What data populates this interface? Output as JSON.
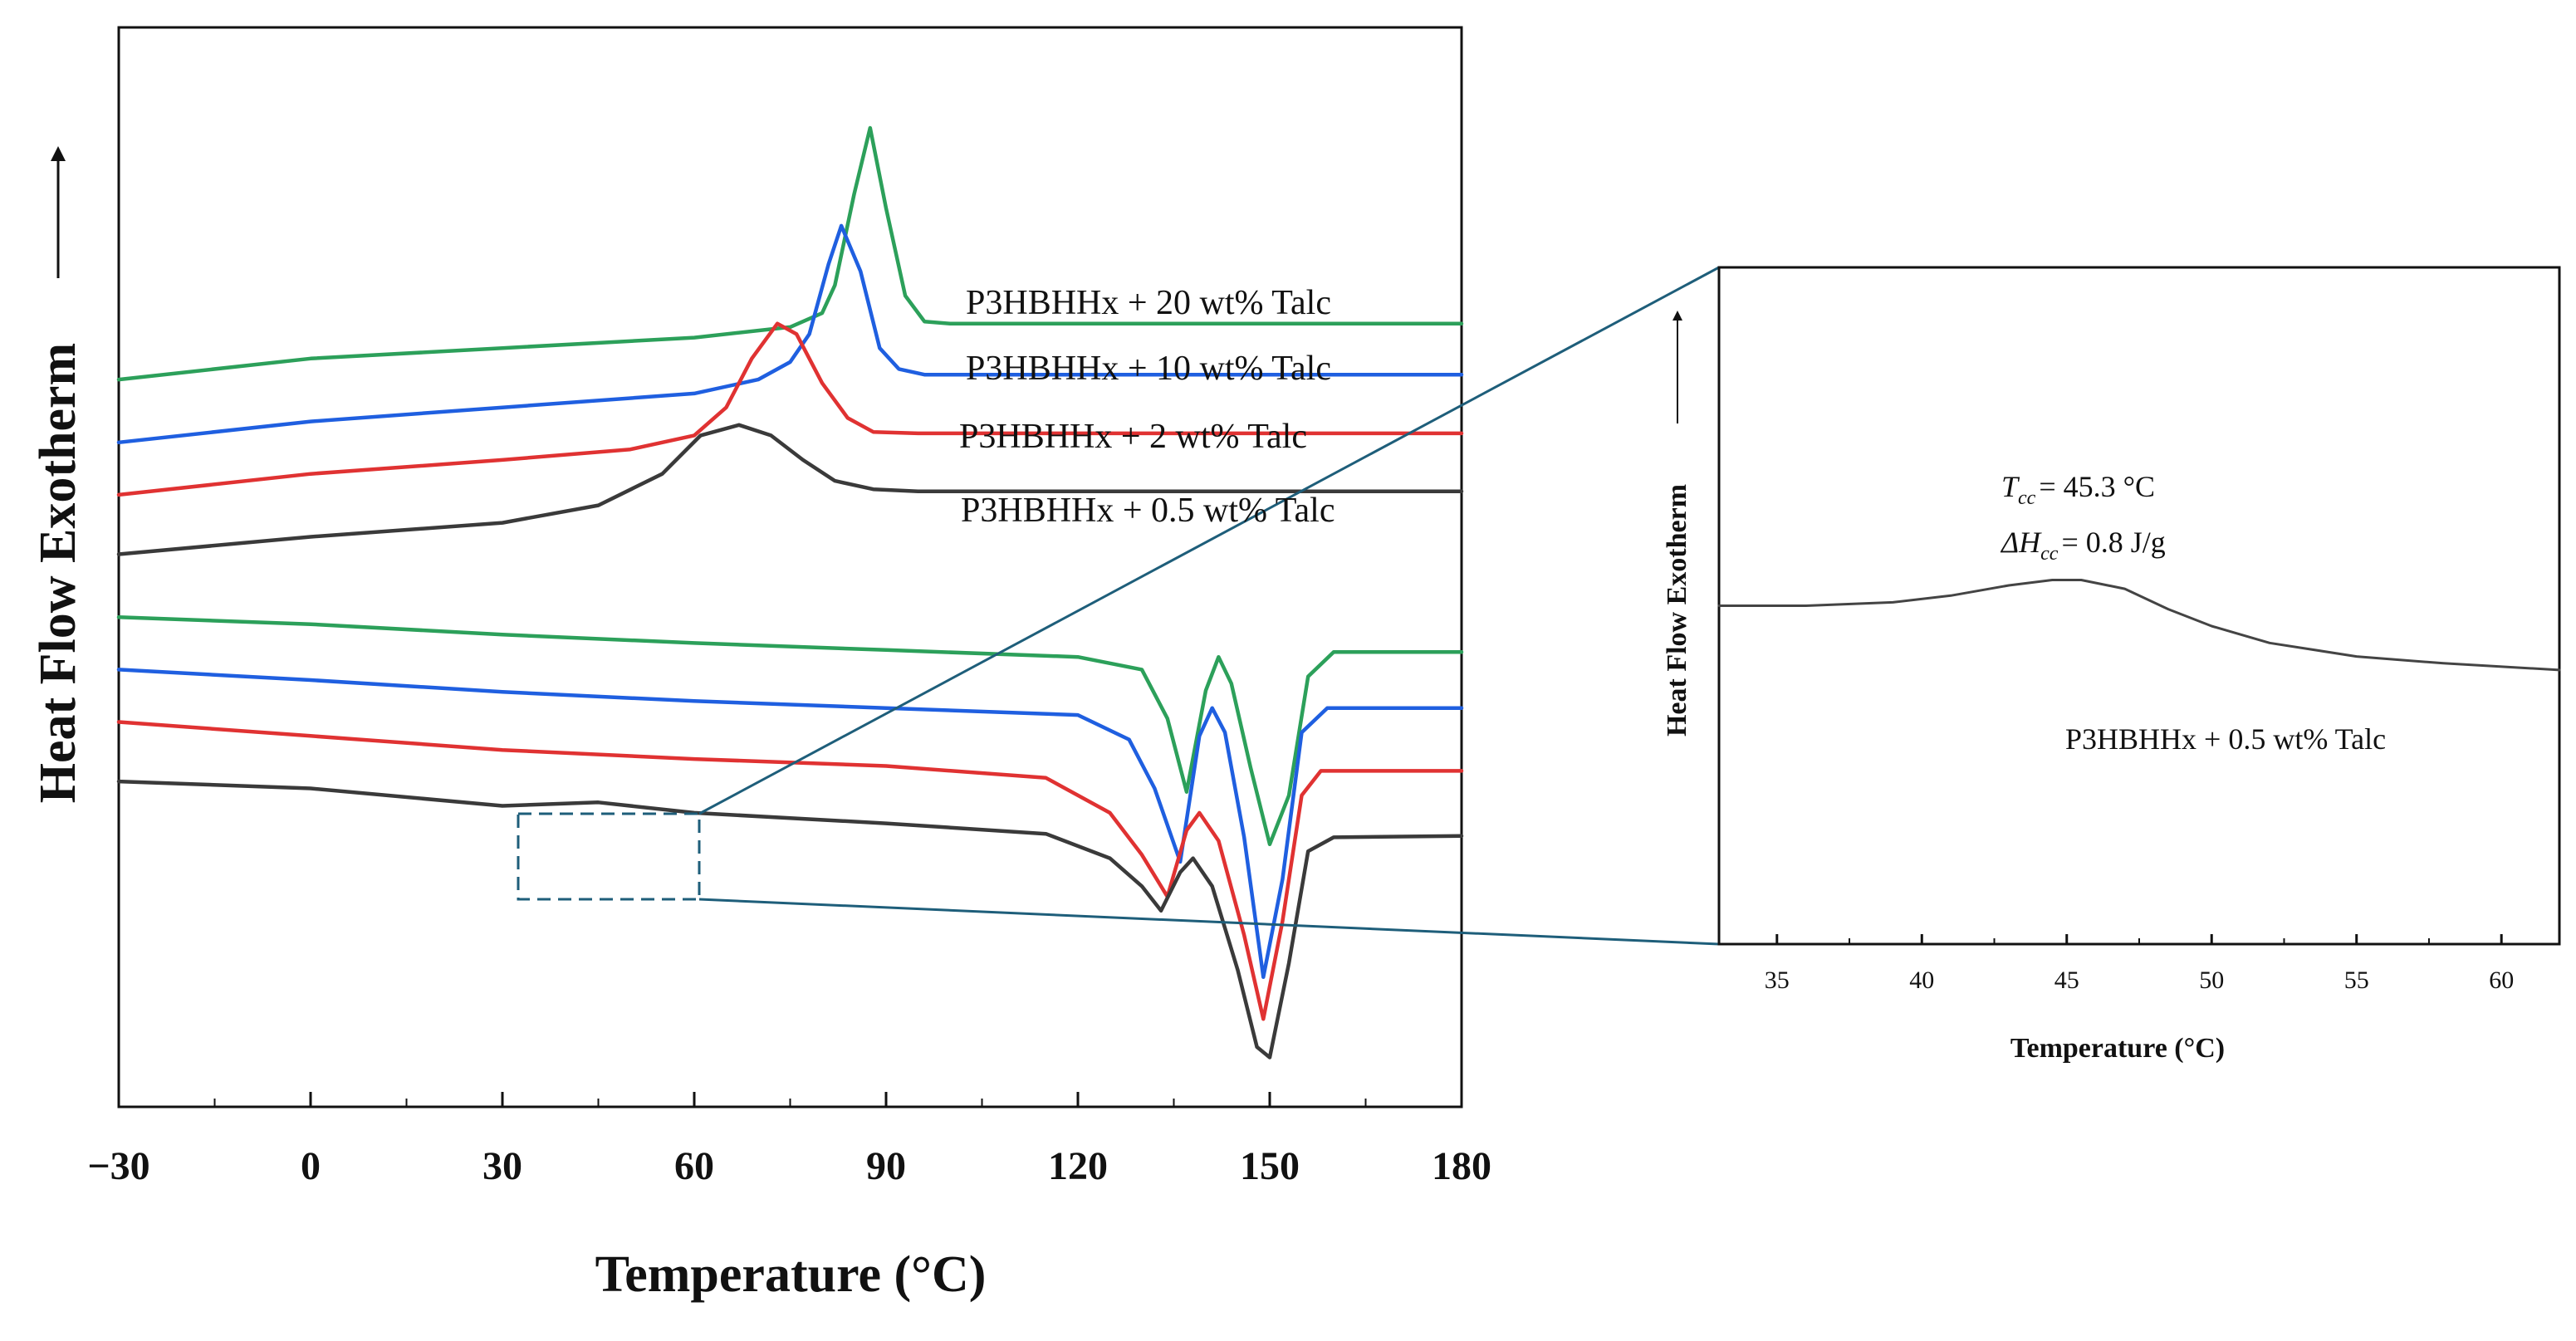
{
  "chart_data": [
    {
      "type": "line",
      "title": "",
      "xlabel": "Temperature (°C)",
      "ylabel": "Heat Flow Exotherm",
      "ylabel_arrow": "up",
      "xlim": [
        -30,
        180
      ],
      "xticks": [
        -30,
        0,
        30,
        60,
        90,
        120,
        150,
        180
      ],
      "xtick_labels": [
        "−30",
        "0",
        "30",
        "60",
        "90",
        "120",
        "150",
        "180"
      ],
      "y_units": "arbitrary (curves vertically offset, no numeric y-axis)",
      "grid": false,
      "series": [
        {
          "name": "P3HBHHx + 20 wt% Talc",
          "color": "#2ca05a",
          "segment": "cooling (crystallization exotherm)",
          "label": "P3HBHHx + 20 wt% Talc",
          "x": [
            -30,
            0,
            30,
            60,
            75,
            80,
            82,
            85,
            87.5,
            90,
            93,
            96,
            100,
            120,
            150,
            180
          ],
          "y": [
            6.75,
            7.05,
            7.2,
            7.35,
            7.5,
            7.7,
            8.1,
            9.4,
            10.35,
            9.2,
            7.95,
            7.58,
            7.55,
            7.55,
            7.55,
            7.55
          ]
        },
        {
          "name": "P3HBHHx + 10 wt% Talc",
          "color": "#1f5fe0",
          "segment": "cooling (crystallization exotherm)",
          "label": "P3HBHHx + 10 wt% Talc",
          "x": [
            -30,
            0,
            30,
            60,
            70,
            75,
            78,
            81,
            83,
            86,
            89,
            92,
            96,
            110,
            150,
            180
          ],
          "y": [
            5.85,
            6.15,
            6.35,
            6.55,
            6.75,
            7.0,
            7.4,
            8.4,
            8.95,
            8.3,
            7.2,
            6.9,
            6.82,
            6.82,
            6.82,
            6.82
          ]
        },
        {
          "name": "P3HBHHx + 2 wt% Talc",
          "color": "#e03232",
          "segment": "cooling (crystallization exotherm)",
          "label": "P3HBHHx + 2 wt% Talc",
          "x": [
            -30,
            0,
            30,
            50,
            60,
            65,
            69,
            73,
            76,
            80,
            84,
            88,
            95,
            110,
            150,
            180
          ],
          "y": [
            5.1,
            5.4,
            5.6,
            5.75,
            5.95,
            6.35,
            7.05,
            7.55,
            7.4,
            6.7,
            6.2,
            6.0,
            5.98,
            5.98,
            5.98,
            5.98
          ]
        },
        {
          "name": "P3HBHHx + 0.5 wt% Talc",
          "color": "#3a3a3a",
          "segment": "cooling (crystallization exotherm)",
          "label": "P3HBHHx + 0.5 wt% Talc",
          "x": [
            -30,
            0,
            30,
            45,
            55,
            61,
            67,
            72,
            77,
            82,
            88,
            95,
            110,
            150,
            180
          ],
          "y": [
            4.25,
            4.5,
            4.7,
            4.95,
            5.4,
            5.95,
            6.1,
            5.95,
            5.6,
            5.3,
            5.18,
            5.15,
            5.15,
            5.15,
            5.15
          ]
        },
        {
          "name": "P3HBHHx + 20 wt% Talc (heating)",
          "color": "#2ca05a",
          "segment": "heating (melting endotherm)",
          "x": [
            -30,
            0,
            30,
            60,
            90,
            120,
            130,
            134,
            137,
            140,
            142,
            144,
            147,
            150,
            153,
            156,
            160,
            180
          ],
          "y": [
            3.35,
            3.25,
            3.1,
            2.98,
            2.88,
            2.78,
            2.6,
            1.9,
            0.85,
            2.3,
            2.78,
            2.4,
            1.2,
            0.1,
            0.8,
            2.5,
            2.85,
            2.85
          ]
        },
        {
          "name": "P3HBHHx + 10 wt% Talc (heating)",
          "color": "#1f5fe0",
          "segment": "heating (melting endotherm)",
          "x": [
            -30,
            0,
            30,
            60,
            90,
            120,
            128,
            132,
            136,
            139,
            141,
            143,
            146,
            149,
            152,
            155,
            159,
            180
          ],
          "y": [
            2.6,
            2.45,
            2.28,
            2.15,
            2.05,
            1.95,
            1.6,
            0.9,
            -0.15,
            1.65,
            2.05,
            1.7,
            0.2,
            -1.8,
            -0.4,
            1.7,
            2.05,
            2.05
          ]
        },
        {
          "name": "P3HBHHx + 2 wt% Talc (heating)",
          "color": "#e03232",
          "segment": "heating (melting endotherm)",
          "x": [
            -30,
            0,
            30,
            60,
            90,
            115,
            125,
            130,
            134,
            137,
            139,
            142,
            146,
            149,
            152,
            155,
            158,
            180
          ],
          "y": [
            1.85,
            1.65,
            1.45,
            1.32,
            1.22,
            1.05,
            0.55,
            -0.05,
            -0.65,
            0.3,
            0.55,
            0.15,
            -1.2,
            -2.4,
            -1.0,
            0.8,
            1.15,
            1.15
          ]
        },
        {
          "name": "P3HBHHx + 0.5 wt% Talc (heating)",
          "color": "#3a3a3a",
          "segment": "heating (melting endotherm)",
          "x": [
            -30,
            0,
            30,
            45,
            60,
            90,
            115,
            125,
            130,
            133,
            136,
            138,
            141,
            145,
            148,
            150,
            153,
            156,
            160,
            180
          ],
          "y": [
            1.0,
            0.9,
            0.65,
            0.7,
            0.55,
            0.4,
            0.25,
            -0.1,
            -0.5,
            -0.85,
            -0.3,
            -0.1,
            -0.5,
            -1.7,
            -2.8,
            -2.95,
            -1.6,
            0.0,
            0.2,
            0.22
          ]
        }
      ],
      "zoom_box": {
        "x_range": [
          32,
          60
        ],
        "meaning": "region magnified in inset"
      }
    },
    {
      "type": "line",
      "title": "",
      "xlabel": "Temperature (°C)",
      "ylabel": "Heat Flow Exotherm",
      "ylabel_arrow": "up",
      "xlim": [
        33,
        62
      ],
      "xticks": [
        35,
        40,
        45,
        50,
        55,
        60
      ],
      "xtick_labels": [
        "35",
        "40",
        "45",
        "50",
        "55",
        "60"
      ],
      "ylim": [
        0,
        10
      ],
      "grid": false,
      "series": [
        {
          "name": "P3HBHHx + 0.5 wt% Talc",
          "color": "#444444",
          "x": [
            33,
            36,
            39,
            41,
            43,
            44.5,
            45.5,
            47,
            48.5,
            50,
            52,
            55,
            58,
            62
          ],
          "y": [
            5.0,
            5.0,
            5.05,
            5.15,
            5.3,
            5.38,
            5.38,
            5.25,
            4.95,
            4.7,
            4.45,
            4.25,
            4.15,
            4.05
          ]
        }
      ],
      "annotations": {
        "tcc_symbol": "T",
        "tcc_subscript": "cc",
        "tcc_value": "= 45.3 °C",
        "dh_symbol": "ΔH",
        "dh_subscript": "cc",
        "dh_value": "= 0.8 J/g",
        "sample_label": "P3HBHHx + 0.5 wt% Talc"
      }
    }
  ]
}
